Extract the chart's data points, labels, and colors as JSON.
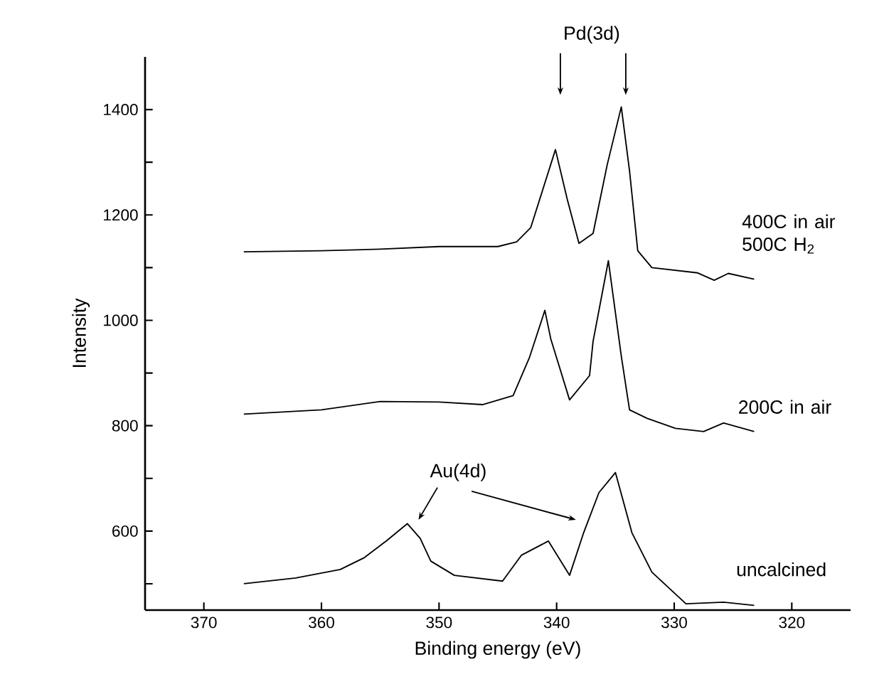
{
  "chart_data": {
    "type": "line",
    "xlabel": "Binding energy (eV)",
    "ylabel": "Intensity",
    "xlim": [
      375,
      315
    ],
    "xticks": [
      370,
      360,
      350,
      340,
      330,
      320
    ],
    "ylim": [
      450,
      1500
    ],
    "yticks": [
      {
        "value": 500,
        "label": null
      },
      600,
      {
        "value": 700,
        "label": null
      },
      800,
      {
        "value": 900,
        "label": null
      },
      1000,
      {
        "value": 1100,
        "label": null
      },
      1200,
      {
        "value": 1300,
        "label": null
      },
      1400
    ],
    "grid": false,
    "legend": false,
    "marker": "none",
    "line_style": "solid",
    "annotations": [
      "Pd(3d)",
      "Au(4d)"
    ],
    "series": [
      {
        "name": "400C in air 500C H$_{2}$",
        "color": "#000000",
        "x": [
          366.6,
          360,
          355,
          350,
          345,
          343.4,
          342.2,
          340.1,
          339.1,
          338.1,
          336.9,
          335.7,
          334.5,
          333.8,
          333.1,
          331.9,
          328,
          326.6,
          325.4,
          323.2
        ],
        "values": [
          1130,
          1132,
          1135,
          1140,
          1140,
          1149,
          1176,
          1324,
          1230,
          1146,
          1165,
          1295,
          1405,
          1284,
          1132,
          1100,
          1090,
          1076,
          1089,
          1078
        ]
      },
      {
        "name": "200C in air",
        "color": "#000000",
        "x": [
          366.6,
          360,
          355,
          350,
          346.3,
          343.7,
          342.3,
          341.0,
          340.5,
          338.9,
          337.2,
          336.9,
          335.6,
          334.5,
          333.8,
          332.3,
          329.9,
          327.5,
          325.8,
          323.2
        ],
        "values": [
          822,
          830,
          846,
          845,
          840,
          857,
          930,
          1019,
          965,
          849,
          895,
          960,
          1113,
          932,
          830,
          814,
          795,
          789,
          805,
          789
        ]
      },
      {
        "name": "uncalcined",
        "color": "#000000",
        "x": [
          366.6,
          362.2,
          358.4,
          356.4,
          354.5,
          352.7,
          351.6,
          350.7,
          348.7,
          344.6,
          343.0,
          340.7,
          338.9,
          337.7,
          336.4,
          335.0,
          333.6,
          331.9,
          329.0,
          325.8,
          323.2
        ],
        "values": [
          500,
          511,
          527,
          549,
          581,
          614,
          586,
          543,
          516,
          505,
          554,
          581,
          516,
          597,
          673,
          711,
          597,
          522,
          462,
          465,
          459
        ]
      }
    ]
  }
}
